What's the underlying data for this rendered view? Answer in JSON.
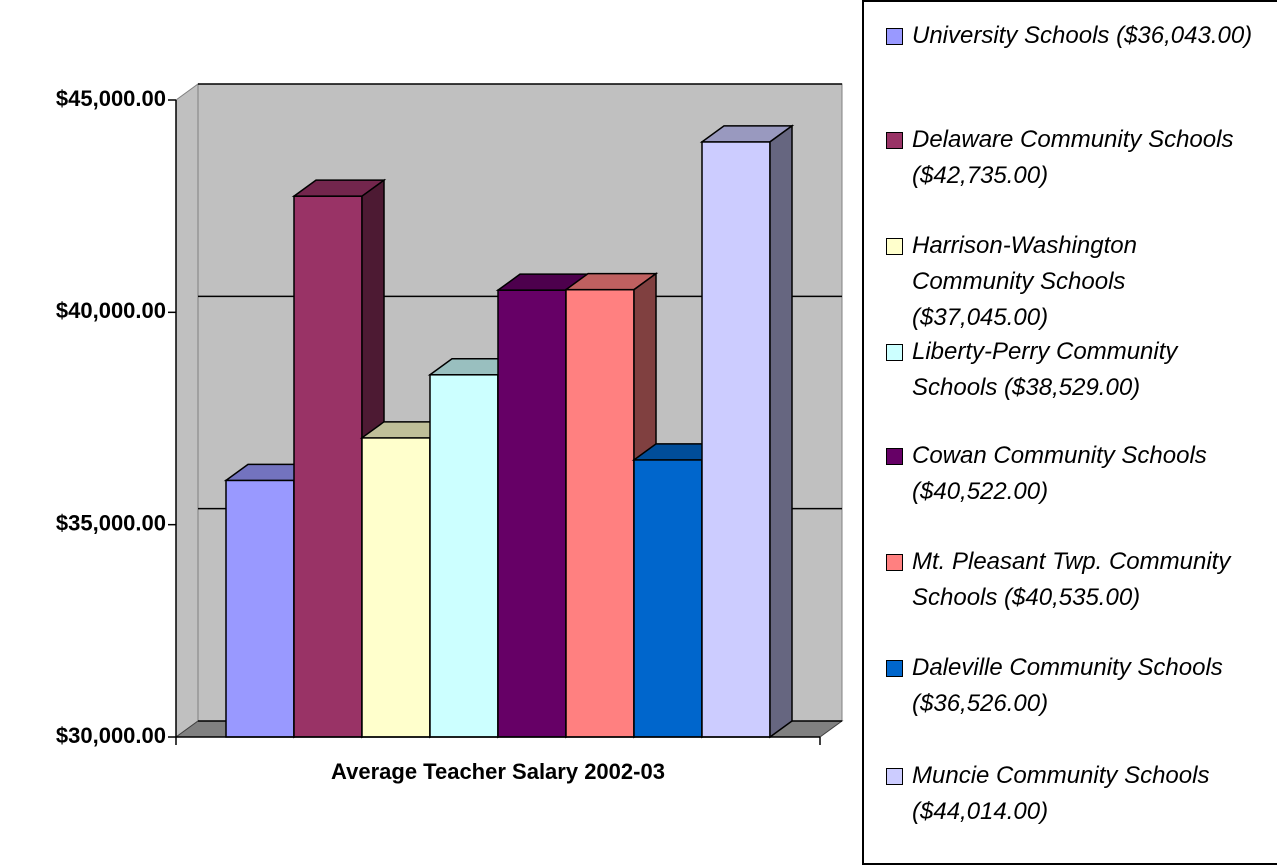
{
  "chart_data": {
    "type": "bar3d",
    "categories": [
      "Average Teacher Salary 2002-03"
    ],
    "series": [
      {
        "name": "University Schools ($36,043.00)",
        "color": "#9999ff",
        "values": [
          36043
        ]
      },
      {
        "name": "Delaware Community Schools ($42,735.00)",
        "color": "#993366",
        "values": [
          42735
        ]
      },
      {
        "name": "Harrison-Washington Community Schools ($37,045.00)",
        "color": "#ffffcc",
        "values": [
          37045
        ]
      },
      {
        "name": "Liberty-Perry Community Schools ($38,529.00)",
        "color": "#ccffff",
        "values": [
          38529
        ]
      },
      {
        "name": "Cowan Community Schools ($40,522.00)",
        "color": "#660066",
        "values": [
          40522
        ]
      },
      {
        "name": "Mt. Pleasant Twp. Community Schools ($40,535.00)",
        "color": "#ff8080",
        "values": [
          40535
        ]
      },
      {
        "name": "Daleville Community Schools ($36,526.00)",
        "color": "#0066cc",
        "values": [
          36526
        ]
      },
      {
        "name": "Muncie Community Schools ($44,014.00)",
        "color": "#ccccff",
        "values": [
          44014
        ]
      }
    ],
    "ylim": [
      30000,
      45000
    ],
    "yticks": [
      {
        "value": 30000,
        "label": "$30,000.00"
      },
      {
        "value": 35000,
        "label": "$35,000.00"
      },
      {
        "value": 40000,
        "label": "$40,000.00"
      },
      {
        "value": 45000,
        "label": "$45,000.00"
      }
    ],
    "grid": true,
    "legend": "right"
  }
}
